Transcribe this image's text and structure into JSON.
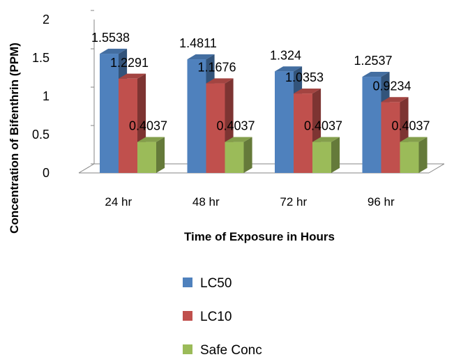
{
  "chart_data": {
    "type": "bar",
    "style": "3d-clustered-column",
    "categories": [
      "24 hr",
      "48 hr",
      "72 hr",
      "96 hr"
    ],
    "series": [
      {
        "name": "LC50",
        "values": [
          1.5538,
          1.4811,
          1.324,
          1.2537
        ],
        "labels": [
          "1.5538",
          "1.4811",
          "1.324",
          "1.2537"
        ],
        "color": "#4F81BD"
      },
      {
        "name": "LC10",
        "values": [
          1.2291,
          1.1676,
          1.0353,
          0.9234
        ],
        "labels": [
          "1.2291",
          "1.1676",
          "1.0353",
          "0.9234"
        ],
        "color": "#C0504D"
      },
      {
        "name": "Safe Conc",
        "values": [
          0.4037,
          0.4037,
          0.4037,
          0.4037
        ],
        "labels": [
          "0.4037",
          "0.4037",
          "0.4037",
          "0.4037"
        ],
        "color": "#9BBB59"
      }
    ],
    "title": "",
    "xlabel": "Time of Exposure in Hours",
    "ylabel": "Concentration of Bifenthrin (PPM)",
    "ylim": [
      0,
      2
    ],
    "yticks": [
      0,
      0.5,
      1,
      1.5,
      2
    ],
    "ytick_labels": [
      "0",
      "0.5",
      "1",
      "1.5",
      "2"
    ],
    "grid": false,
    "legend_position": "bottom"
  }
}
